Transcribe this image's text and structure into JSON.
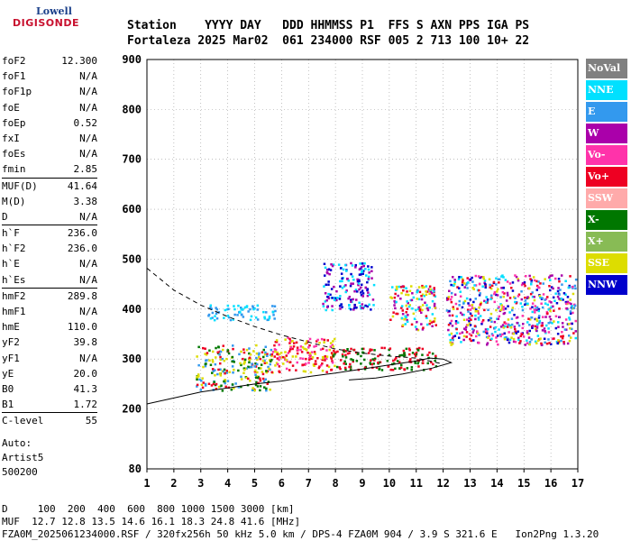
{
  "logo": {
    "line1": "Lowell",
    "line2": "DIGISONDE"
  },
  "header": {
    "line1": "Station    YYYY DAY   DDD HHMMSS P1  FFS S AXN PPS IGA PS",
    "line2": "Fortaleza 2025 Mar02  061 234000 RSF 005 2 713 100 10+ 22"
  },
  "params": {
    "group1": [
      {
        "k": "foF2",
        "v": "12.300"
      },
      {
        "k": "foF1",
        "v": "N/A"
      },
      {
        "k": "foF1p",
        "v": "N/A"
      },
      {
        "k": "foE",
        "v": "N/A"
      },
      {
        "k": "foEp",
        "v": "0.52"
      },
      {
        "k": "fxI",
        "v": "N/A"
      },
      {
        "k": "foEs",
        "v": "N/A"
      },
      {
        "k": "fmin",
        "v": "2.85"
      }
    ],
    "group2": [
      {
        "k": "MUF(D)",
        "v": "41.64"
      },
      {
        "k": "M(D)",
        "v": "3.38"
      },
      {
        "k": "D",
        "v": "N/A"
      }
    ],
    "group3": [
      {
        "k": "h`F",
        "v": "236.0"
      },
      {
        "k": "h`F2",
        "v": "236.0"
      },
      {
        "k": "h`E",
        "v": "N/A"
      },
      {
        "k": "h`Es",
        "v": "N/A"
      }
    ],
    "group4": [
      {
        "k": "hmF2",
        "v": "289.8"
      },
      {
        "k": "hmF1",
        "v": "N/A"
      },
      {
        "k": "hmE",
        "v": "110.0"
      },
      {
        "k": "yF2",
        "v": "39.8"
      },
      {
        "k": "yF1",
        "v": "N/A"
      },
      {
        "k": "yE",
        "v": "20.0"
      },
      {
        "k": "B0",
        "v": "41.3"
      },
      {
        "k": "B1",
        "v": "1.72"
      }
    ],
    "group5": [
      {
        "k": "C-level",
        "v": "55"
      }
    ]
  },
  "auto": {
    "l1": "Auto:",
    "l2": "Artist5",
    "l3": "500200"
  },
  "legend": [
    {
      "label": "NoVal",
      "color": "#808080"
    },
    {
      "label": "NNE",
      "color": "#00e0ff"
    },
    {
      "label": "E",
      "color": "#3399ee"
    },
    {
      "label": "W",
      "color": "#aa00aa"
    },
    {
      "label": "Vo-",
      "color": "#ff33aa"
    },
    {
      "label": "Vo+",
      "color": "#ee0022"
    },
    {
      "label": "SSW",
      "color": "#ffaaaa"
    },
    {
      "label": "X-",
      "color": "#007700"
    },
    {
      "label": "X+",
      "color": "#88bb55"
    },
    {
      "label": "SSE",
      "color": "#dddd00"
    },
    {
      "label": "NNW",
      "color": "#0000cc"
    }
  ],
  "footer": {
    "line1": "D     100  200  400  600  800 1000 1500 3000 [km]",
    "line2": "MUF  12.7 12.8 13.5 14.6 16.1 18.3 24.8 41.6 [MHz]",
    "line3": "FZA0M_2025061234000.RSF / 320fx256h 50 kHz 5.0 km / DPS-4 FZA0M 904 / 3.9 S 321.6 E   Ion2Png 1.3.20"
  },
  "chart_data": {
    "type": "scatter",
    "xlim": [
      1,
      17
    ],
    "ylim": [
      80,
      900
    ],
    "xticks": [
      "1",
      "2",
      "3",
      "4",
      "5",
      "6",
      "7",
      "8",
      "9",
      "10",
      "11",
      "12",
      "13",
      "14",
      "15",
      "16",
      "17"
    ],
    "yticks": [
      "80",
      "200",
      "300",
      "400",
      "500",
      "600",
      "700",
      "800",
      "900"
    ],
    "grid": true,
    "clusters": [
      {
        "name": "lower F trace",
        "x": [
          2.8,
          5.6
        ],
        "y": [
          238,
          330
        ],
        "colors": [
          "#ee0022",
          "#dddd00",
          "#007700",
          "#3399ee"
        ]
      },
      {
        "name": "lower F trace mid",
        "x": [
          5.6,
          8.0
        ],
        "y": [
          275,
          345
        ],
        "colors": [
          "#ee0022",
          "#dddd00",
          "#ff33aa"
        ]
      },
      {
        "name": "lower F trace upper",
        "x": [
          7.8,
          11.7
        ],
        "y": [
          280,
          325
        ],
        "colors": [
          "#ee0022",
          "#007700"
        ]
      },
      {
        "name": "E echo band",
        "x": [
          3.2,
          5.8
        ],
        "y": [
          380,
          410
        ],
        "colors": [
          "#3399ee",
          "#00e0ff"
        ]
      },
      {
        "name": "upper echoes 8-9",
        "x": [
          7.5,
          9.4
        ],
        "y": [
          400,
          495
        ],
        "colors": [
          "#00e0ff",
          "#aa00aa",
          "#0000cc"
        ]
      },
      {
        "name": "upper echoes 10-11",
        "x": [
          10.0,
          11.7
        ],
        "y": [
          360,
          450
        ],
        "colors": [
          "#00e0ff",
          "#aa00aa",
          "#ee0022",
          "#dddd00"
        ]
      },
      {
        "name": "upper echoes 12-17",
        "x": [
          12.1,
          16.9
        ],
        "y": [
          330,
          470
        ],
        "colors": [
          "#00e0ff",
          "#aa00aa",
          "#ee0022",
          "#dddd00",
          "#0000cc",
          "#3399ee",
          "#ff33aa"
        ]
      }
    ],
    "solid_curve": [
      [
        1,
        210
      ],
      [
        2,
        222
      ],
      [
        3,
        234
      ],
      [
        4,
        242
      ],
      [
        5,
        250
      ],
      [
        6,
        256
      ],
      [
        7,
        265
      ],
      [
        8,
        272
      ],
      [
        9,
        280
      ],
      [
        10,
        288
      ],
      [
        11,
        296
      ],
      [
        11.5,
        302
      ],
      [
        12,
        300
      ],
      [
        12.3,
        293
      ],
      [
        11.6,
        282
      ],
      [
        10.5,
        270
      ],
      [
        9.5,
        262
      ],
      [
        8.5,
        258
      ]
    ],
    "dashed_curve": [
      [
        1,
        482
      ],
      [
        2,
        438
      ],
      [
        3,
        408
      ],
      [
        4,
        385
      ],
      [
        5,
        365
      ],
      [
        6,
        348
      ],
      [
        7,
        334
      ],
      [
        8,
        320
      ],
      [
        9,
        312
      ],
      [
        10,
        306
      ],
      [
        11,
        302
      ],
      [
        12,
        290
      ]
    ]
  }
}
